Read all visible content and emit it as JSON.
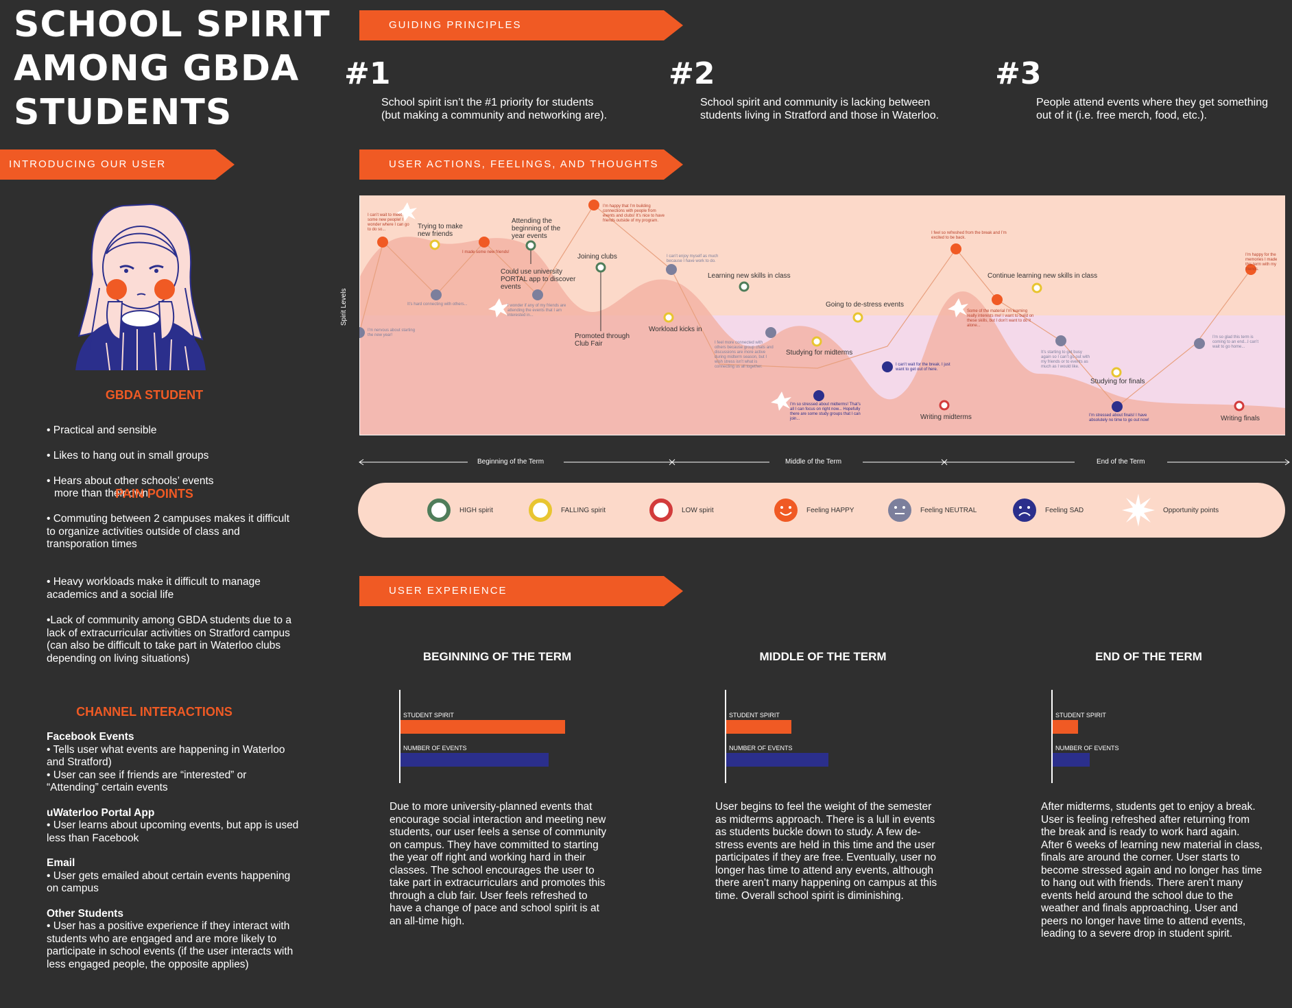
{
  "header": {
    "title_lines": [
      "SCHOOL SPIRIT",
      "AMONG GBDA",
      "STUDENTS"
    ]
  },
  "banners": {
    "guiding": "GUIDING PRINCIPLES",
    "intro": "INTRODUCING OUR USER",
    "actions": "USER ACTIONS, FEELINGS, AND THOUGHTS",
    "experience": "USER EXPERIENCE"
  },
  "principles": [
    {
      "num": "#1",
      "text": "School spirit isn’t the #1 priority for students\n (but making a community and networking are)."
    },
    {
      "num": "#2",
      "text": "School spirit and community is lacking between\nstudents living in Stratford and those in Waterloo."
    },
    {
      "num": "#3",
      "text": "People attend events where they get something\nout of it (i.e. free merch, food, etc.)."
    }
  ],
  "user": {
    "heading": "GBDA STUDENT",
    "traits": [
      "• Practical and sensible",
      "• Likes to hang out in small groups",
      "• Hears about other schools’ events\n  more than their own"
    ]
  },
  "pain": {
    "heading": "PAIN POINTS",
    "items": [
      "• Commuting between 2 campuses makes it difficult to organize activities outside of class and transporation times",
      "• Heavy workloads make it difficult to manage academics and a social life",
      "•Lack of community among GBDA students due to a lack of extracurricular activities on Stratford campus (can also be difficult to take part in Waterloo clubs depending on living situations)"
    ]
  },
  "channels": {
    "heading": "CHANNEL INTERACTIONS",
    "items": [
      {
        "title": "Facebook Events",
        "text": "• Tells user what events are happening in Waterloo and Stratford)\n• User can see if friends are “interested” or “Attending” certain events"
      },
      {
        "title": "uWaterloo Portal App",
        "text": "• User learns about upcoming events, but app is used less than Facebook"
      },
      {
        "title": "Email",
        "text": "• User gets emailed about certain events happening on campus"
      },
      {
        "title": "Other Students",
        "text": "• User has a positive experience if they interact with students who are engaged and are more likely to participate in school events (if the user interacts with less engaged people, the opposite applies)"
      }
    ]
  },
  "journey": {
    "y_axis": "Spirit Levels",
    "actions": [
      {
        "text": "Trying to make\nnew friends",
        "spirit": "falling"
      },
      {
        "text": "Attending the\nbeginning of the\nyear events",
        "spirit": "high"
      },
      {
        "text": "Joining clubs",
        "spirit": "high"
      },
      {
        "text": "Could use university\nPORTAL app to discover\nevents",
        "spirit": ""
      },
      {
        "text": "Promoted through\nClub Fair",
        "spirit": ""
      },
      {
        "text": "Workload kicks in",
        "spirit": "falling"
      },
      {
        "text": "Learning new skills in class",
        "spirit": "high"
      },
      {
        "text": "Studying for midterms",
        "spirit": "falling"
      },
      {
        "text": "Going to de-stress events",
        "spirit": "falling"
      },
      {
        "text": "Writing midterms",
        "spirit": "low"
      },
      {
        "text": "Continue learning new skills in class",
        "spirit": "falling"
      },
      {
        "text": "Studying for finals",
        "spirit": "falling"
      },
      {
        "text": "Writing finals",
        "spirit": "low"
      }
    ],
    "thoughts": [
      "I can’t wait to meet some new people! I wonder where I can go to do so...",
      "I made some new friends!",
      "It’s hard connecting with others...",
      "I wonder if any of my friends are attending the events that I am interested in...",
      "I’m happy that I’m building connections with people from events and clubs! It’s nice to have friends outside of my program.",
      "I can’t enjoy myself as much because I have work to do.",
      "I’m nervous about starting the new year!",
      "I feel more connected with others because group chats and discussions are more active during midterm season, but I wish stress isn’t what is connecting us all together.",
      "I’m so stressed about midterms! That’s all I can focus on right now... Hopefully there are some study groups that I can join...",
      "I can’t wait for the break. I just want to get out of here.",
      "I feel so refreshed from the break and I’m excited to be back.",
      "Some of the material I’m learning really interests me! I want to build on these skills, but I don’t want to do it alone...",
      "It’s starting to get busy again so I can’t go out with my friends or to events as much as I would like.",
      "I’m stressed about finals! I have absolutely no time to go out now!",
      "I’m so glad this term is coming to an end...I can’t wait to go home...",
      "I’m happy for the memories I made this term with my friends."
    ]
  },
  "timeline": {
    "beginning": "Beginning of the Term",
    "middle": "Middle of the Term",
    "end": "End of the Term"
  },
  "legend": [
    {
      "label": "HIGH spirit",
      "icon": "ring-green-icon",
      "color": "#4f7d5a"
    },
    {
      "label": "FALLING spirit",
      "icon": "ring-yellow-icon",
      "color": "#e8c530"
    },
    {
      "label": "LOW spirit",
      "icon": "ring-red-icon",
      "color": "#d23b3b"
    },
    {
      "label": "Feeling HAPPY",
      "icon": "happy-face-icon",
      "color": "#f05a24"
    },
    {
      "label": "Feeling NEUTRAL",
      "icon": "neutral-face-icon",
      "color": "#7c7f9c"
    },
    {
      "label": "Feeling SAD",
      "icon": "sad-face-icon",
      "color": "#2b2f8c"
    },
    {
      "label": "Opportunity points",
      "icon": "starburst-icon",
      "color": "#ffffff"
    }
  ],
  "experience": {
    "spirit_label": "STUDENT SPIRIT",
    "events_label": "NUMBER OF EVENTS",
    "terms": [
      {
        "heading": "BEGINNING OF THE TERM",
        "spirit": 0.71,
        "events": 0.64,
        "text": "Due to more university-planned events that encourage social interaction and meeting new students, our user feels a sense of community on campus. They have committed to starting the year off right and working hard in their classes. The school encourages the user to take part in extracurriculars and promotes this through a club fair. User feels refreshed to have a change of pace and school spirit is at an all-time high."
      },
      {
        "heading": "MIDDLE OF THE TERM",
        "spirit": 0.28,
        "events": 0.44,
        "text": "User begins to feel the weight of the semester as midterms approach. There is a lull in events as students buckle down to study. A few de-stress events are held in this time and the user participates if they are free. Eventually, user no longer has time to attend any events, although there aren’t many happening on campus at this time. Overall school spirit is diminishing."
      },
      {
        "heading": "END OF THE TERM",
        "spirit": 0.11,
        "events": 0.16,
        "text": "After midterms, students get to enjoy a break. User is feeling refreshed after returning from the break and is ready to work hard again. After 6 weeks of learning new material in class, finals are around the corner. User starts to become stressed again and no longer has time to hang out with friends. There aren’t many events held around the school due to the weather and finals approaching. User and peers no longer have time to attend events, leading to a severe drop in student spirit."
      }
    ]
  },
  "colors": {
    "accent": "#f05a24",
    "background": "#2f2f2f",
    "events_bar": "#2b2f8c"
  }
}
